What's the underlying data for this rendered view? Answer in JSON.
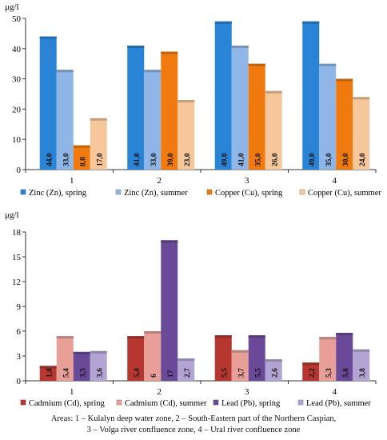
{
  "chart_data": [
    {
      "type": "bar",
      "ylabel": "μg/l",
      "ylim": [
        0,
        50
      ],
      "yticks": [
        0,
        10,
        20,
        30,
        40,
        50
      ],
      "categories": [
        "1",
        "2",
        "3",
        "4"
      ],
      "grid": false,
      "legend_position": "bottom",
      "series": [
        {
          "name": "Zinc (Zn), spring",
          "color": "#2a84d6",
          "values": [
            44.0,
            41.0,
            49.0,
            49.0
          ],
          "labels": [
            "44,0",
            "41,0",
            "49,0",
            "49,0"
          ]
        },
        {
          "name": "Zinc (Zn), summer",
          "color": "#8fb6e6",
          "values": [
            33.0,
            33.0,
            41.0,
            35.0
          ],
          "labels": [
            "33,0",
            "33,0",
            "41,0",
            "35,0"
          ]
        },
        {
          "name": "Copper (Cu),  spring",
          "color": "#f07a10",
          "values": [
            8.0,
            39.0,
            35.0,
            30.0
          ],
          "labels": [
            "8,0",
            "39,0",
            "35,0",
            "30,0"
          ]
        },
        {
          "name": "Copper (Cu),  summer",
          "color": "#f6c79a",
          "values": [
            17.0,
            23.0,
            26.0,
            24.0
          ],
          "labels": [
            "17,0",
            "23,0",
            "26,0",
            "24,0"
          ]
        }
      ]
    },
    {
      "type": "bar",
      "ylabel": "μg/l",
      "ylim": [
        0,
        18
      ],
      "yticks": [
        0,
        3,
        6,
        9,
        12,
        15,
        18
      ],
      "categories": [
        "1",
        "2",
        "3",
        "4"
      ],
      "grid": false,
      "legend_position": "bottom",
      "series": [
        {
          "name": "Cadmium (Cd), spring",
          "color": "#b5372f",
          "values": [
            1.8,
            5.4,
            5.5,
            2.2
          ],
          "labels": [
            "1,8",
            "5,4",
            "5,5",
            "2,2"
          ]
        },
        {
          "name": "Cadmium (Cd), summer",
          "color": "#e79f98",
          "values": [
            5.4,
            6.0,
            3.7,
            5.3
          ],
          "labels": [
            "5,4",
            "6",
            "3,7",
            "5,3"
          ]
        },
        {
          "name": "Lead (Pb),  spring",
          "color": "#6a4a98",
          "values": [
            3.5,
            17.0,
            5.5,
            5.8
          ],
          "labels": [
            "3,5",
            "17",
            "5,5",
            "5,8"
          ]
        },
        {
          "name": "Lead (Pb),  summer",
          "color": "#b3a5d3",
          "values": [
            3.6,
            2.7,
            2.6,
            3.8
          ],
          "labels": [
            "3,6",
            "2,7",
            "2,6",
            "3,8"
          ]
        }
      ]
    }
  ],
  "caption": {
    "line1": "Areas: 1 – Kulalyn deep water zone, 2 – South-Eastern part of the Northern Caspian,",
    "line2": "3 – Volga river confluence zone, 4 – Ural river confluence zone"
  }
}
